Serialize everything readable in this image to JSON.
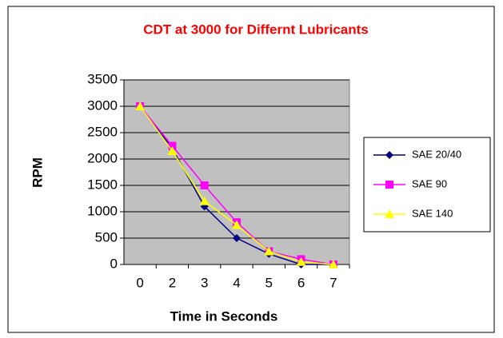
{
  "chart_data": {
    "type": "line",
    "title": "CDT at 3000 for Differnt Lubricants",
    "x_label": "Time in Seconds",
    "y_label": "RPM",
    "categories": [
      "0",
      "2",
      "3",
      "4",
      "5",
      "6",
      "7"
    ],
    "series": [
      {
        "name": "SAE 20/40",
        "color": "#000080",
        "marker": "diamond",
        "values": [
          3000,
          2200,
          1100,
          500,
          200,
          0,
          0
        ]
      },
      {
        "name": "SAE 90",
        "color": "#ff00ff",
        "marker": "square",
        "values": [
          3000,
          2250,
          1500,
          800,
          250,
          100,
          0
        ]
      },
      {
        "name": "SAE 140",
        "color": "#ffff00",
        "marker": "triangle",
        "values": [
          3000,
          2150,
          1200,
          750,
          250,
          50,
          0
        ]
      }
    ],
    "ylim": [
      0,
      3500
    ],
    "yticks": [
      0,
      500,
      1000,
      1500,
      2000,
      2500,
      3000,
      3500
    ],
    "grid": true,
    "legend": "right"
  }
}
